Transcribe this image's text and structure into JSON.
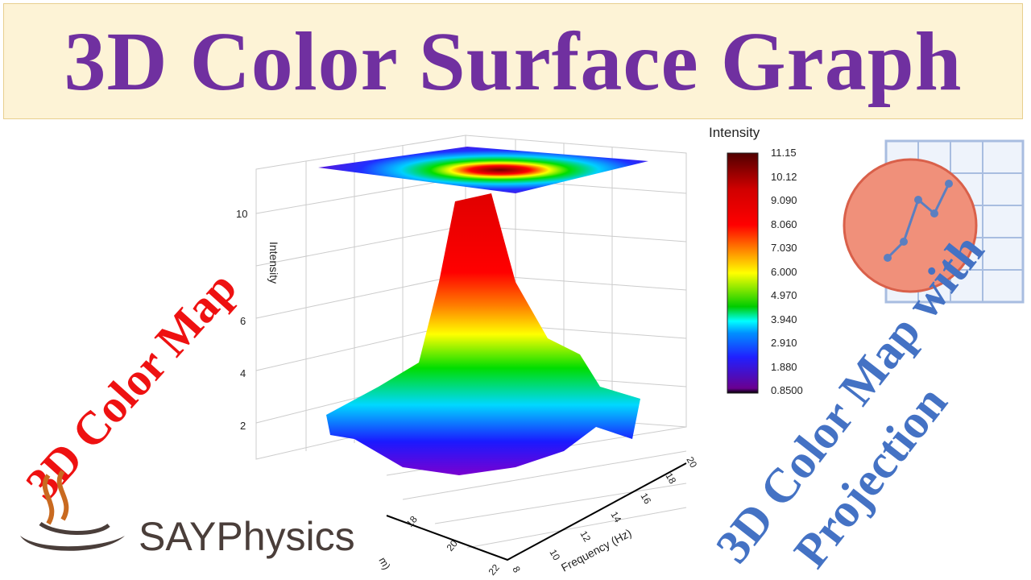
{
  "banner": {
    "title": "3D Color Surface Graph"
  },
  "left_label": "3D Color Map",
  "right_label": {
    "line1": "3D Color Map with",
    "line2": "Projection"
  },
  "logo": {
    "text": "SAYPhysics"
  },
  "chart_data": {
    "type": "3d-surface",
    "zlabel": "Intensity",
    "ylabel": "Frequency (Hz)",
    "xlabel_partial": "m)",
    "z_ticks": [
      "2",
      "4",
      "6",
      "10"
    ],
    "y_ticks": [
      "8",
      "10",
      "12",
      "14",
      "16",
      "18",
      "20"
    ],
    "x_ticks": [
      "18",
      "20",
      "22"
    ],
    "colorbar": {
      "title": "Intensity",
      "ticks": [
        "11.15",
        "10.12",
        "9.090",
        "8.060",
        "7.030",
        "6.000",
        "4.970",
        "3.940",
        "2.910",
        "1.880",
        "0.8500"
      ],
      "range": [
        0.85,
        11.15
      ]
    },
    "projection": "top-contour-map",
    "colors": [
      "#800080",
      "#0000ff",
      "#00ffff",
      "#00cc00",
      "#ffff00",
      "#ff8000",
      "#ff0000",
      "#700000"
    ]
  }
}
